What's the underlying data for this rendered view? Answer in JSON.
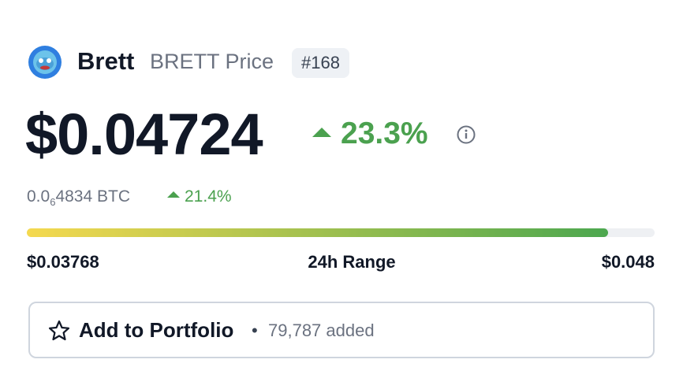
{
  "header": {
    "name": "Brett",
    "symbol_label": "BRETT Price",
    "rank": "#168"
  },
  "price": {
    "usd": "$0.04724",
    "usd_change": "23.3%",
    "btc_prefix": "0.0",
    "btc_zero_count": "6",
    "btc_rest": "4834 BTC",
    "btc_change": "21.4%"
  },
  "range": {
    "low": "$0.03768",
    "label": "24h Range",
    "high": "$0.048"
  },
  "portfolio": {
    "button": "Add to Portfolio",
    "separator": "•",
    "added": "79,787 added"
  }
}
